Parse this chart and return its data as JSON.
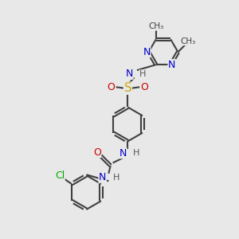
{
  "bg_color": "#e8e8e8",
  "bond_color": "#404040",
  "bond_width": 1.5,
  "atom_colors": {
    "N": "#0000cc",
    "O": "#cc0000",
    "S": "#ccaa00",
    "Cl": "#00aa00",
    "C": "#404040",
    "H": "#555555"
  },
  "font_size": 9,
  "fig_size": [
    3.0,
    3.0
  ],
  "dpi": 100
}
